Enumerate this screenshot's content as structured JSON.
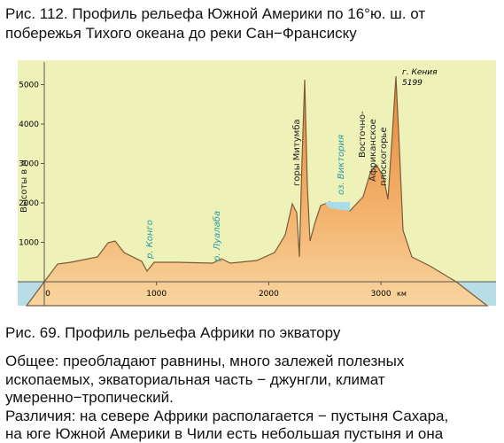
{
  "caption_top": [
    "Рис. 112. Профиль рельефа Южной Америки по 16°ю. ш. от",
    "побережья Тихого океана до реки Сан−Франсиску"
  ],
  "profile": {
    "y_label": "Высоты в м",
    "yticks": [
      1000,
      2000,
      3000,
      4000,
      5000
    ],
    "xticks": [
      0,
      1000,
      2000,
      3000
    ],
    "x_unit": "км",
    "labels": {
      "congo": "р. Конго",
      "lualaba": "р. Луалаба",
      "mitumba": "горы Митумба",
      "victoria": "оз. Виктория",
      "plateau": [
        "Восточно-",
        "Африканское",
        "плоскогорье"
      ],
      "kenya": [
        "г. Кения",
        "5199"
      ]
    }
  },
  "caption_bottom": "Рис. 69. Профиль рельефа Африки по экватору",
  "paragraph": [
    "Общее: преобладают равнины, много залежей полезных",
    "ископаемых, экваториальная часть − джунгли, климат",
    "умеренно−тропический.",
    "Различия: на севере Африки располагается − пустыня Сахара,",
    "на юге Южной Америки в Чили есть небольшая пустыня и она"
  ]
}
